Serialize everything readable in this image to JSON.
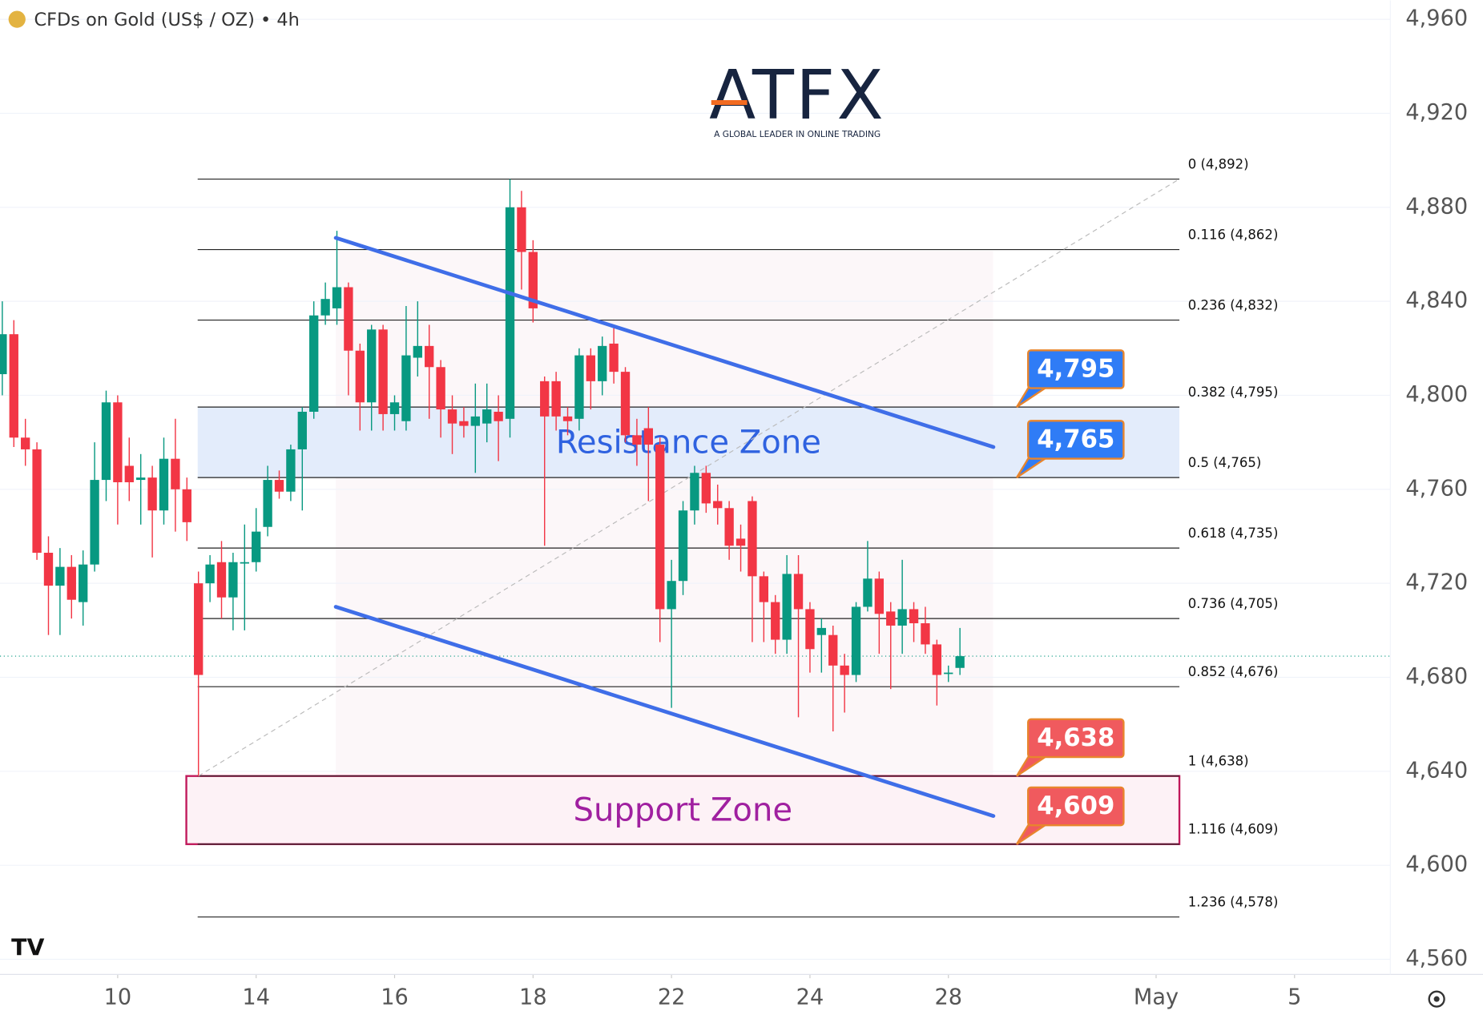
{
  "chart_data": {
    "type": "candlestick",
    "title": "CFDs on Gold (US$ / OZ) • 4h",
    "logo": {
      "brand": "ATFX",
      "tagline": "A GLOBAL LEADER IN ONLINE TRADING"
    },
    "up_color": "#089981",
    "down_color": "#f23645",
    "xlim": [
      -10.2,
      110.3
    ],
    "ylim": [
      4560,
      4960
    ],
    "xticks": [
      {
        "value": 0,
        "label": "10"
      },
      {
        "value": 12,
        "label": "14"
      },
      {
        "value": 24,
        "label": "16"
      },
      {
        "value": 36,
        "label": "18"
      },
      {
        "value": 48,
        "label": "22"
      },
      {
        "value": 60,
        "label": "24"
      },
      {
        "value": 72,
        "label": "28"
      },
      {
        "value": 90,
        "label": "May"
      },
      {
        "value": 102,
        "label": "5"
      }
    ],
    "yticks": [
      {
        "value": 4960,
        "label": "4,960"
      },
      {
        "value": 4920,
        "label": "4,920"
      },
      {
        "value": 4880,
        "label": "4,880"
      },
      {
        "value": 4840,
        "label": "4,840"
      },
      {
        "value": 4800,
        "label": "4,800"
      },
      {
        "value": 4760,
        "label": "4,760"
      },
      {
        "value": 4720,
        "label": "4,720"
      },
      {
        "value": 4680,
        "label": "4,680"
      },
      {
        "value": 4640,
        "label": "4,640"
      },
      {
        "value": 4600,
        "label": "4,600"
      },
      {
        "value": 4560,
        "label": "4,560"
      }
    ],
    "grid": true,
    "x": [
      -10,
      -9,
      -8,
      -7,
      -6,
      -5,
      -4,
      -3,
      -2,
      -1,
      0,
      1,
      2,
      3,
      4,
      5,
      6,
      7,
      8,
      9,
      10,
      11,
      12,
      13,
      14,
      15,
      16,
      17,
      18,
      19,
      20,
      21,
      22,
      23,
      24,
      25,
      26,
      27,
      28,
      29,
      30,
      31,
      32,
      33,
      34,
      35,
      36,
      37,
      38,
      39,
      40,
      41,
      42,
      43,
      44,
      45,
      46,
      47,
      48,
      49,
      50,
      51,
      52,
      53,
      54,
      55,
      56,
      57,
      58,
      59,
      60,
      61,
      62,
      63,
      64,
      65,
      66,
      67,
      68,
      69,
      70,
      71,
      72,
      73
    ],
    "open": [
      4809,
      4826,
      4782,
      4777,
      4733,
      4719,
      4727,
      4712,
      4728,
      4764,
      4797,
      4770,
      4764,
      4765,
      4751,
      4773,
      4760,
      4720,
      4720,
      4729,
      4714,
      4729,
      4729,
      4744,
      4764,
      4759,
      4777,
      4793,
      4834,
      4837,
      4846,
      4819,
      4797,
      4828,
      4792,
      4789,
      4816,
      4821,
      4812,
      4794,
      4789,
      4787,
      4788,
      4793,
      4790,
      4880,
      4861,
      4806,
      4806,
      4791,
      4790,
      4817,
      4806,
      4822,
      4810,
      4783,
      4786,
      4779,
      4709,
      4721,
      4751,
      4767,
      4755,
      4752,
      4739,
      4755,
      4723,
      4712,
      4696,
      4724,
      4709,
      4698,
      4698,
      4685,
      4681,
      4710,
      4722,
      4708,
      4702,
      4709,
      4703,
      4694,
      4682,
      4684
    ],
    "high": [
      4840,
      4832,
      4790,
      4780,
      4740,
      4735,
      4732,
      4734,
      4780,
      4802,
      4800,
      4782,
      4775,
      4770,
      4782,
      4790,
      4765,
      4725,
      4732,
      4738,
      4733,
      4745,
      4752,
      4770,
      4768,
      4779,
      4795,
      4840,
      4848,
      4870,
      4848,
      4822,
      4830,
      4830,
      4800,
      4838,
      4840,
      4830,
      4815,
      4800,
      4795,
      4805,
      4805,
      4800,
      4892,
      4887,
      4866,
      4808,
      4810,
      4795,
      4820,
      4820,
      4825,
      4830,
      4812,
      4790,
      4795,
      4782,
      4730,
      4755,
      4770,
      4770,
      4762,
      4755,
      4745,
      4757,
      4725,
      4715,
      4732,
      4732,
      4712,
      4705,
      4702,
      4690,
      4712,
      4738,
      4725,
      4712,
      4730,
      4712,
      4710,
      4696,
      4685,
      4701
    ],
    "low": [
      4800,
      4778,
      4770,
      4730,
      4698,
      4698,
      4705,
      4702,
      4725,
      4755,
      4745,
      4755,
      4745,
      4731,
      4745,
      4742,
      4738,
      4638,
      4712,
      4705,
      4700,
      4700,
      4725,
      4740,
      4756,
      4755,
      4751,
      4790,
      4830,
      4830,
      4800,
      4785,
      4785,
      4785,
      4785,
      4785,
      4808,
      4790,
      4782,
      4775,
      4782,
      4767,
      4780,
      4772,
      4782,
      4845,
      4831,
      4736,
      4785,
      4783,
      4785,
      4794,
      4800,
      4805,
      4780,
      4770,
      4755,
      4695,
      4667,
      4715,
      4745,
      4750,
      4745,
      4730,
      4725,
      4695,
      4695,
      4690,
      4690,
      4663,
      4682,
      4682,
      4657,
      4665,
      4678,
      4708,
      4690,
      4675,
      4690,
      4695,
      4690,
      4668,
      4678,
      4681
    ],
    "close": [
      4826,
      4782,
      4777,
      4733,
      4719,
      4727,
      4713,
      4728,
      4764,
      4797,
      4763,
      4763,
      4765,
      4751,
      4773,
      4760,
      4746,
      4681,
      4728,
      4714,
      4729,
      4729,
      4742,
      4764,
      4759,
      4777,
      4793,
      4834,
      4841,
      4846,
      4819,
      4797,
      4828,
      4792,
      4797,
      4817,
      4821,
      4812,
      4794,
      4788,
      4787,
      4791,
      4794,
      4789,
      4880,
      4861,
      4837,
      4791,
      4791,
      4789,
      4817,
      4806,
      4821,
      4810,
      4783,
      4779,
      4779,
      4709,
      4721,
      4751,
      4767,
      4754,
      4752,
      4736,
      4736,
      4723,
      4712,
      4696,
      4724,
      4709,
      4692,
      4701,
      4685,
      4681,
      4710,
      4722,
      4707,
      4702,
      4709,
      4703,
      4694,
      4681,
      4682,
      4689
    ],
    "current_price": 4689,
    "fib_levels": [
      {
        "label": "0 (4,892)",
        "value": 4892
      },
      {
        "label": "0.116 (4,862)",
        "value": 4862
      },
      {
        "label": "0.236 (4,832)",
        "value": 4832
      },
      {
        "label": "0.382 (4,795)",
        "value": 4795
      },
      {
        "label": "0.5 (4,765)",
        "value": 4765
      },
      {
        "label": "0.618 (4,735)",
        "value": 4735
      },
      {
        "label": "0.736 (4,705)",
        "value": 4705
      },
      {
        "label": "0.852 (4,676)",
        "value": 4676
      },
      {
        "label": "1 (4,638)",
        "value": 4638
      },
      {
        "label": "1.116 (4,609)",
        "value": 4609
      },
      {
        "label": "1.236 (4,578)",
        "value": 4578
      }
    ],
    "fib_trend": {
      "x": [
        7,
        92
      ],
      "y": [
        4638,
        4892
      ]
    },
    "zones": [
      {
        "name": "Resistance Zone",
        "low": 4765,
        "high": 4795,
        "color": "#2f62e0"
      },
      {
        "name": "Support Zone",
        "low": 4609,
        "high": 4638,
        "color": "#a020a0"
      }
    ],
    "channel": [
      {
        "x": [
          18.9,
          75.9
        ],
        "y": [
          4867,
          4778
        ]
      },
      {
        "x": [
          18.9,
          75.9
        ],
        "y": [
          4710,
          4621
        ]
      }
    ],
    "callouts": [
      {
        "value": 4795,
        "label": "4,795",
        "color": "#2f7cf6"
      },
      {
        "value": 4765,
        "label": "4,765",
        "color": "#2f7cf6"
      },
      {
        "value": 4638,
        "label": "4,638",
        "color": "#f05a5e"
      },
      {
        "value": 4609,
        "label": "4,609",
        "color": "#f05a5e"
      }
    ]
  }
}
